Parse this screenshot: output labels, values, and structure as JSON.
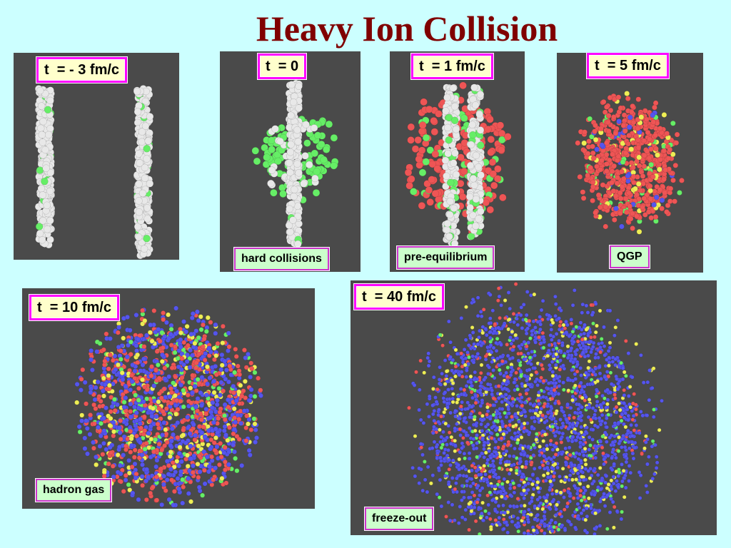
{
  "title": "Heavy Ion Collision",
  "colors": {
    "background": "#ccffff",
    "title": "#800000",
    "panel": "#4a4a4a",
    "label_border": "#ff00ff",
    "label_fill": "#ffffcc",
    "caption_fill": "#ccffcc",
    "nucleon": "#e8e8e8",
    "hard": "#66ee66",
    "parton": "#ee5555",
    "hadron": "#5555ee",
    "other": "#eeee55"
  },
  "panels": [
    {
      "time": "t  = - 3 fm/c",
      "caption": ""
    },
    {
      "time": "t  = 0",
      "caption": "hard collisions"
    },
    {
      "time": "t  = 1 fm/c",
      "caption": "pre-equilibrium"
    },
    {
      "time": "t  = 5 fm/c",
      "caption": "QGP"
    },
    {
      "time": "t  = 10 fm/c",
      "caption": "hadron gas"
    },
    {
      "time": "t  = 40 fm/c",
      "caption": "freeze-out"
    }
  ]
}
